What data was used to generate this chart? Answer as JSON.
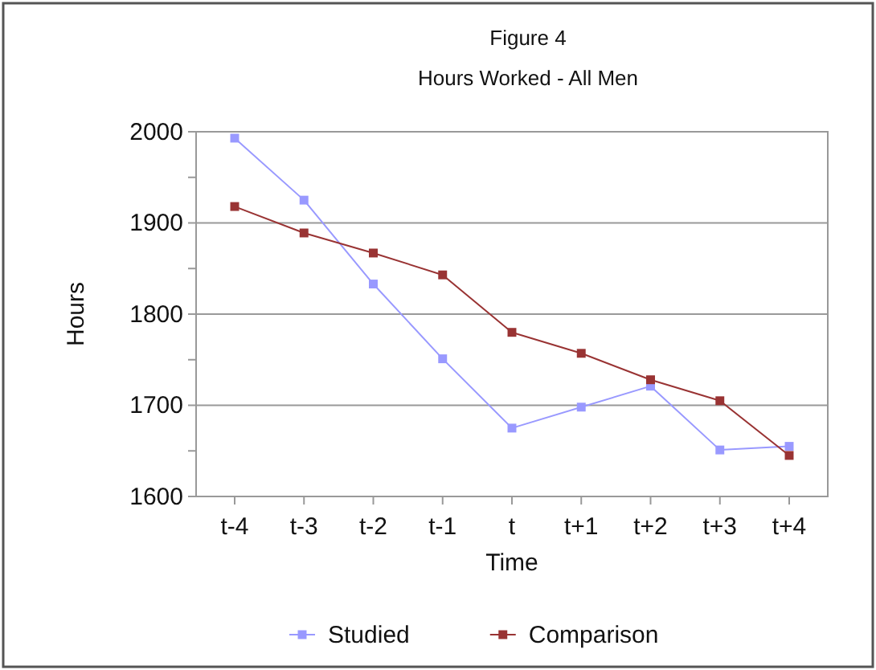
{
  "chart_data": {
    "type": "line",
    "title": "Figure 4",
    "subtitle": "Hours Worked - All Men",
    "xlabel": "Time",
    "ylabel": "Hours",
    "categories": [
      "t-4",
      "t-3",
      "t-2",
      "t-1",
      "t",
      "t+1",
      "t+2",
      "t+3",
      "t+4"
    ],
    "series": [
      {
        "name": "Studied",
        "color": "#9999ff",
        "values": [
          1993,
          1925,
          1833,
          1751,
          1675,
          1698,
          1721,
          1651,
          1655
        ]
      },
      {
        "name": "Comparison",
        "color": "#993333",
        "values": [
          1918,
          1889,
          1867,
          1843,
          1780,
          1757,
          1728,
          1705,
          1645
        ]
      }
    ],
    "ylim": [
      1600,
      2000
    ],
    "yticks": [
      1600,
      {
        "value": 1650,
        "label": null
      },
      1700,
      {
        "value": 1750,
        "label": null
      },
      1800,
      {
        "value": 1850,
        "label": null
      },
      1900,
      {
        "value": 1950,
        "label": null
      },
      2000
    ],
    "grid": "y",
    "legend": "bottom",
    "marker": "square",
    "line_style": "solid"
  }
}
